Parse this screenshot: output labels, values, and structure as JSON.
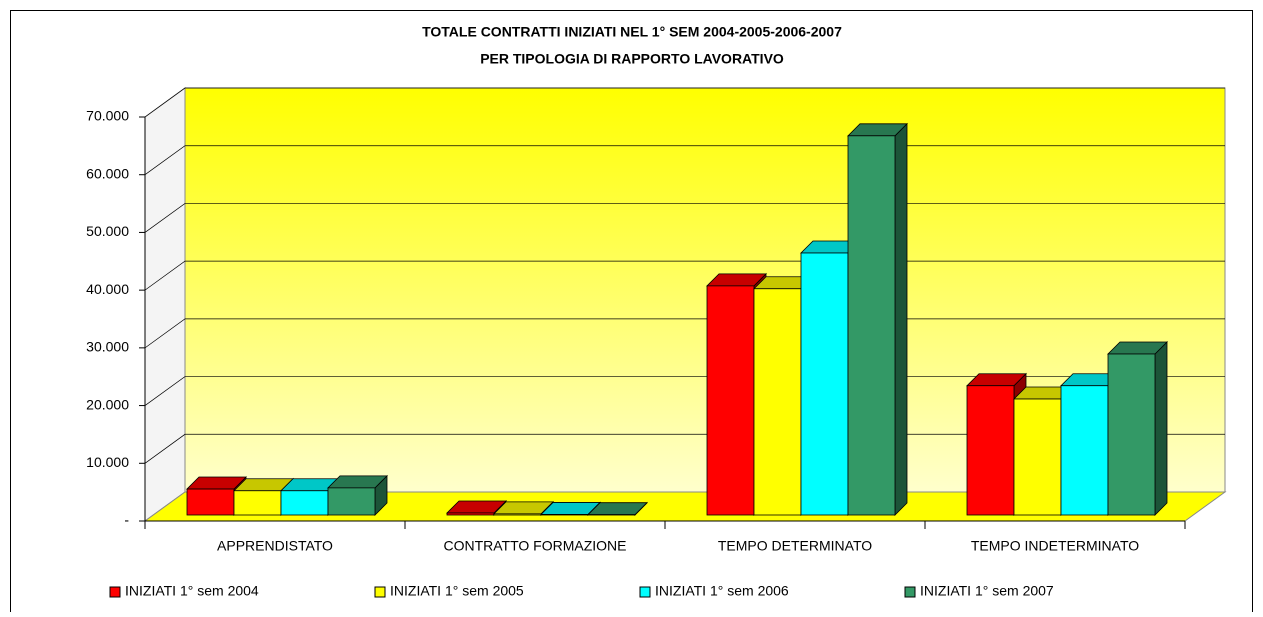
{
  "chart_data": {
    "type": "bar3d",
    "title": "TOTALE CONTRATTI INIZIATI NEL 1° SEM 2004-2005-2006-2007",
    "subtitle": "PER TIPOLOGIA DI RAPPORTO LAVORATIVO",
    "categories": [
      "APPRENDISTATO",
      "CONTRATTO FORMAZIONE",
      "TEMPO DETERMINATO",
      "TEMPO INDETERMINATO"
    ],
    "series": [
      {
        "name": "INIZIATI 1° sem 2004",
        "color": "#ff0000",
        "values": [
          4500,
          350,
          39700,
          22400
        ]
      },
      {
        "name": "INIZIATI 1° sem 2005",
        "color": "#ffff00",
        "values": [
          4200,
          200,
          39200,
          20100
        ]
      },
      {
        "name": "INIZIATI 1° sem 2006",
        "color": "#00ffff",
        "values": [
          4200,
          100,
          45400,
          22400
        ]
      },
      {
        "name": "INIZIATI 1° sem 2007",
        "color": "#339966",
        "values": [
          4700,
          50,
          65700,
          27900
        ]
      }
    ],
    "ylim": [
      0,
      70000
    ],
    "yticks": [
      {
        "value": 0,
        "label": "-"
      },
      {
        "value": 10000,
        "label": "10.000"
      },
      {
        "value": 20000,
        "label": "20.000"
      },
      {
        "value": 30000,
        "label": "30.000"
      },
      {
        "value": 40000,
        "label": "40.000"
      },
      {
        "value": 50000,
        "label": "50.000"
      },
      {
        "value": 60000,
        "label": "60.000"
      },
      {
        "value": 70000,
        "label": "70.000"
      }
    ],
    "grid": true,
    "legend": "bottom"
  }
}
